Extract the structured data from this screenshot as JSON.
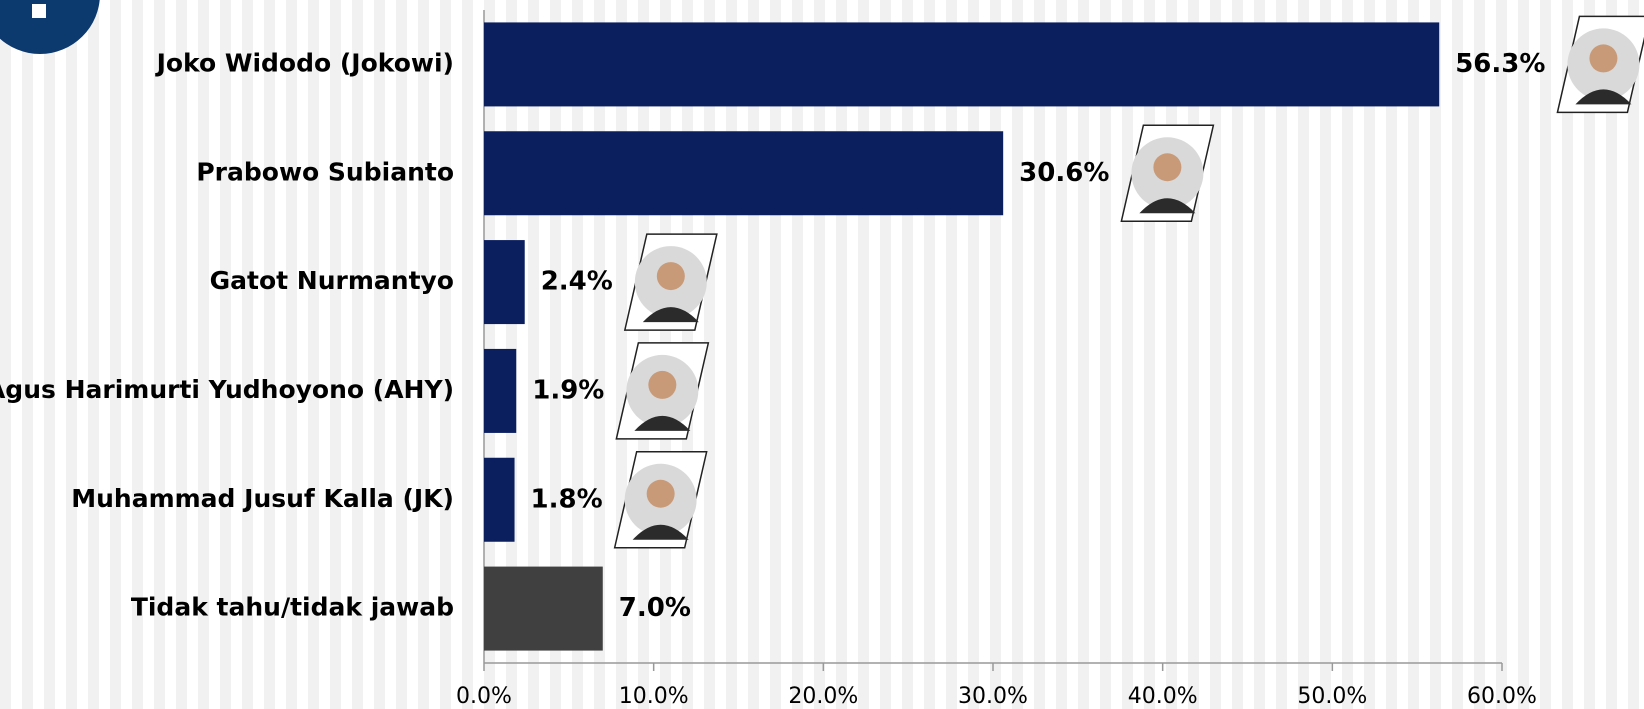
{
  "chart_data": {
    "type": "bar",
    "orientation": "horizontal",
    "categories": [
      "Joko Widodo (Jokowi)",
      "Prabowo Subianto",
      "Gatot Nurmantyo",
      "Agus Harimurti Yudhoyono (AHY)",
      "Muhammad Jusuf Kalla (JK)",
      "Tidak tahu/tidak jawab"
    ],
    "values": [
      56.3,
      30.6,
      2.4,
      1.9,
      1.8,
      7.0
    ],
    "value_labels": [
      "56.3%",
      "30.6%",
      "2.4%",
      "1.9%",
      "1.8%",
      "7.0%"
    ],
    "colors": [
      "#0b1f5f",
      "#0b1f5f",
      "#0b1f5f",
      "#0b1f5f",
      "#0b1f5f",
      "#404040"
    ],
    "xlim": [
      0,
      60
    ],
    "xticks": [
      {
        "value": 0,
        "label": "0.0%"
      },
      {
        "value": 10,
        "label": "10.0%"
      },
      {
        "value": 20,
        "label": "20.0%"
      },
      {
        "value": 30,
        "label": "30.0%"
      },
      {
        "value": 40,
        "label": "40.0%"
      },
      {
        "value": 50,
        "label": "50.0%"
      },
      {
        "value": 60,
        "label": "60.0%"
      }
    ]
  }
}
